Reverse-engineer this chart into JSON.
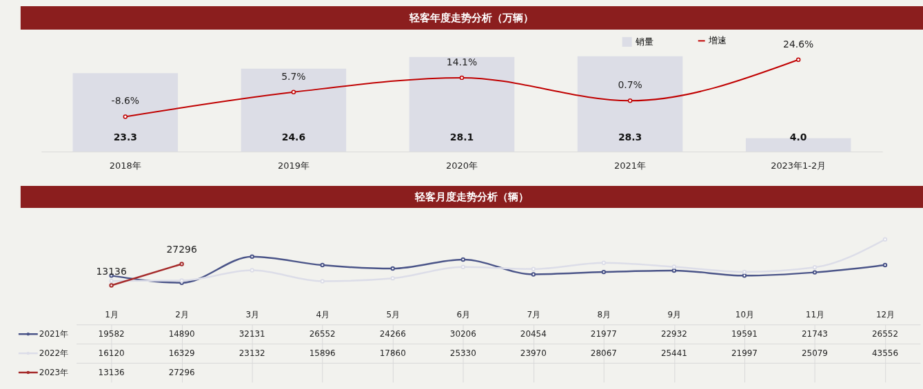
{
  "chart_data": [
    {
      "type": "bar",
      "title": "轻客年度走势分析（万辆）",
      "categories": [
        "2018年",
        "2019年",
        "2020年",
        "2021年",
        "2023年1-2月"
      ],
      "tick_labels": "x",
      "legend": "top right",
      "marker": "circle",
      "series": [
        {
          "name": "销量",
          "type": "bar",
          "color": "#dcdde6",
          "values": [
            23.3,
            24.6,
            28.1,
            28.3,
            4.0
          ],
          "value_labels": [
            "23.3",
            "24.6",
            "28.1",
            "28.3",
            "4.0"
          ]
        },
        {
          "name": "增速",
          "type": "line",
          "axis": "y2",
          "color": "#c00000",
          "values": [
            -8.6,
            5.7,
            14.1,
            0.7,
            24.6
          ],
          "value_labels": [
            "-8.6%",
            "5.7%",
            "14.1%",
            "0.7%",
            "24.6%"
          ]
        }
      ]
    },
    {
      "type": "line",
      "title": "轻客月度走势分析（辆）",
      "categories": [
        "1月",
        "2月",
        "3月",
        "4月",
        "5月",
        "6月",
        "7月",
        "8月",
        "9月",
        "10月",
        "11月",
        "12月"
      ],
      "tick_labels": "x",
      "legend": "left",
      "marker": "circle",
      "data_labels": true,
      "annotations": [
        {
          "text": "13136",
          "x": "1月",
          "y": 13136
        },
        {
          "text": "27296",
          "x": "2月",
          "y": 27296
        }
      ],
      "series": [
        {
          "name": "2021年",
          "color": "#4a5488",
          "values": [
            19582,
            14890,
            32131,
            26552,
            24266,
            30206,
            20454,
            21977,
            22932,
            19591,
            21743,
            26552
          ]
        },
        {
          "name": "2022年",
          "color": "#dcdde8",
          "values": [
            16120,
            16329,
            23132,
            15896,
            17860,
            25330,
            23970,
            28067,
            25441,
            21997,
            25079,
            43556
          ]
        },
        {
          "name": "2023年",
          "color": "#a52a2a",
          "values": [
            13136,
            27296,
            null,
            null,
            null,
            null,
            null,
            null,
            null,
            null,
            null,
            null
          ]
        }
      ]
    }
  ]
}
